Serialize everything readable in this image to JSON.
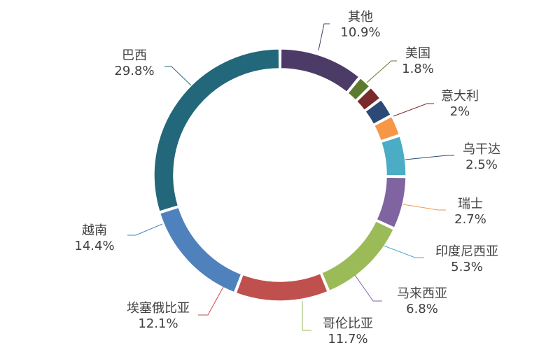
{
  "chart_data": {
    "type": "pie",
    "title": "",
    "categories": [
      "其他",
      "美国",
      "意大利",
      "乌干达",
      "瑞士",
      "印度尼西亚",
      "马来西亚",
      "哥伦比亚",
      "埃塞俄比亚",
      "越南",
      "巴西"
    ],
    "values": [
      10.9,
      1.8,
      2,
      2.5,
      2.7,
      5.3,
      6.8,
      11.7,
      12.1,
      14.4,
      29.8
    ],
    "value_labels": [
      "10.9%",
      "1.8%",
      "2%",
      "2.5%",
      "2.7%",
      "5.3%",
      "6.8%",
      "11.7%",
      "12.1%",
      "14.4%",
      "29.8%"
    ],
    "colors": [
      "#4b3b66",
      "#5e7a2e",
      "#7a2a2a",
      "#2c4a75",
      "#f79646",
      "#4bacc6",
      "#8064a2",
      "#9bbb59",
      "#c0504d",
      "#4f81bd",
      "#23677a"
    ],
    "donut": true,
    "legend": "none"
  }
}
